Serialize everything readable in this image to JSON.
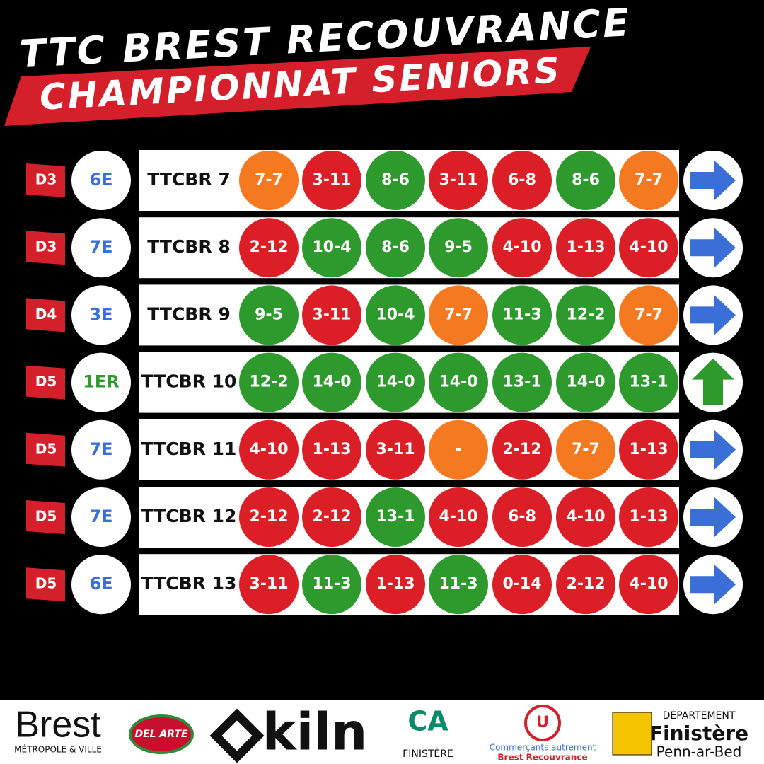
{
  "header": {
    "title": "TTC BREST RECOUVRANCE",
    "subtitle": "CHAMPIONNAT SENIORS"
  },
  "rows": [
    {
      "division": "D3",
      "rank": "6E",
      "rank_color": "#3a6fd8",
      "team": "TTCBR 7",
      "trend": "right",
      "results": [
        {
          "text": "7-7",
          "color": "#f47920"
        },
        {
          "text": "3-11",
          "color": "#dc1f26"
        },
        {
          "text": "8-6",
          "color": "#2e9a2e"
        },
        {
          "text": "3-11",
          "color": "#dc1f26"
        },
        {
          "text": "6-8",
          "color": "#dc1f26"
        },
        {
          "text": "8-6",
          "color": "#2e9a2e"
        },
        {
          "text": "7-7",
          "color": "#f47920"
        }
      ]
    },
    {
      "division": "D3",
      "rank": "7E",
      "rank_color": "#3a6fd8",
      "team": "TTCBR 8",
      "trend": "right",
      "results": [
        {
          "text": "2-12",
          "color": "#dc1f26"
        },
        {
          "text": "10-4",
          "color": "#2e9a2e"
        },
        {
          "text": "8-6",
          "color": "#2e9a2e"
        },
        {
          "text": "9-5",
          "color": "#2e9a2e"
        },
        {
          "text": "4-10",
          "color": "#dc1f26"
        },
        {
          "text": "1-13",
          "color": "#dc1f26"
        },
        {
          "text": "4-10",
          "color": "#dc1f26"
        }
      ]
    },
    {
      "division": "D4",
      "rank": "3E",
      "rank_color": "#3a6fd8",
      "team": "TTCBR 9",
      "trend": "right",
      "results": [
        {
          "text": "9-5",
          "color": "#2e9a2e"
        },
        {
          "text": "3-11",
          "color": "#dc1f26"
        },
        {
          "text": "10-4",
          "color": "#2e9a2e"
        },
        {
          "text": "7-7",
          "color": "#f47920"
        },
        {
          "text": "11-3",
          "color": "#2e9a2e"
        },
        {
          "text": "12-2",
          "color": "#2e9a2e"
        },
        {
          "text": "7-7",
          "color": "#f47920"
        }
      ]
    },
    {
      "division": "D5",
      "rank": "1ER",
      "rank_color": "#2e9a2e",
      "team": "TTCBR 10",
      "trend": "up",
      "results": [
        {
          "text": "12-2",
          "color": "#2e9a2e"
        },
        {
          "text": "14-0",
          "color": "#2e9a2e"
        },
        {
          "text": "14-0",
          "color": "#2e9a2e"
        },
        {
          "text": "14-0",
          "color": "#2e9a2e"
        },
        {
          "text": "13-1",
          "color": "#2e9a2e"
        },
        {
          "text": "14-0",
          "color": "#2e9a2e"
        },
        {
          "text": "13-1",
          "color": "#2e9a2e"
        }
      ]
    },
    {
      "division": "D5",
      "rank": "7E",
      "rank_color": "#3a6fd8",
      "team": "TTCBR 11",
      "trend": "right",
      "results": [
        {
          "text": "4-10",
          "color": "#dc1f26"
        },
        {
          "text": "1-13",
          "color": "#dc1f26"
        },
        {
          "text": "3-11",
          "color": "#dc1f26"
        },
        {
          "text": "-",
          "color": "#f47920"
        },
        {
          "text": "2-12",
          "color": "#dc1f26"
        },
        {
          "text": "7-7",
          "color": "#f47920"
        },
        {
          "text": "1-13",
          "color": "#dc1f26"
        }
      ]
    },
    {
      "division": "D5",
      "rank": "7E",
      "rank_color": "#3a6fd8",
      "team": "TTCBR 12",
      "trend": "right",
      "results": [
        {
          "text": "2-12",
          "color": "#dc1f26"
        },
        {
          "text": "2-12",
          "color": "#dc1f26"
        },
        {
          "text": "13-1",
          "color": "#2e9a2e"
        },
        {
          "text": "4-10",
          "color": "#dc1f26"
        },
        {
          "text": "6-8",
          "color": "#dc1f26"
        },
        {
          "text": "4-10",
          "color": "#dc1f26"
        },
        {
          "text": "1-13",
          "color": "#dc1f26"
        }
      ]
    },
    {
      "division": "D5",
      "rank": "6E",
      "rank_color": "#3a6fd8",
      "team": "TTCBR 13",
      "trend": "right",
      "results": [
        {
          "text": "3-11",
          "color": "#dc1f26"
        },
        {
          "text": "11-3",
          "color": "#2e9a2e"
        },
        {
          "text": "1-13",
          "color": "#dc1f26"
        },
        {
          "text": "11-3",
          "color": "#2e9a2e"
        },
        {
          "text": "0-14",
          "color": "#dc1f26"
        },
        {
          "text": "2-12",
          "color": "#dc1f26"
        },
        {
          "text": "4-10",
          "color": "#dc1f26"
        }
      ]
    }
  ],
  "sponsors": {
    "brest": "Brest",
    "brest_sub": "MÉTROPOLE & VILLE",
    "delarte": "DEL ARTE",
    "kiln": "kiln",
    "ca": "CA",
    "ca_sub": "FINISTÈRE",
    "u_line1": "Commerçants autrement",
    "u_line2": "Brest Recouvrance",
    "dep_line1": "DÉPARTEMENT",
    "dep_line2": "Finistère",
    "dep_line3": "Penn-ar-Bed"
  }
}
